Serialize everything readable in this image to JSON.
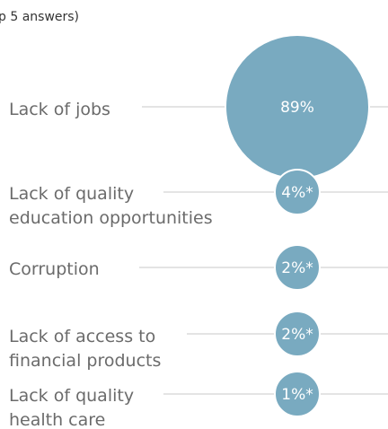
{
  "colors": {
    "bubble": "#79aac0",
    "bubble_stroke": "#ffffff",
    "leader": "#c9c9c9",
    "label": "#6b6b6b",
    "value_text": "#ffffff",
    "subtitle": "#333333"
  },
  "chart_data": {
    "type": "bubble",
    "subtitle": "p 5 answers)",
    "categories": [
      "Lack of jobs",
      "Lack of quality education opportunities",
      "Corruption",
      "Lack of access to financial products",
      "Lack of quality health care"
    ],
    "category_lines": [
      [
        "Lack of jobs"
      ],
      [
        "Lack of quality",
        "education opportunities"
      ],
      [
        "Corruption"
      ],
      [
        "Lack of access to",
        "financial products"
      ],
      [
        "Lack of quality",
        "health care"
      ]
    ],
    "values": [
      89,
      4,
      2,
      2,
      1
    ],
    "value_labels": [
      "89%",
      "4%*",
      "2%*",
      "2%*",
      "1%*"
    ],
    "unit": "%"
  }
}
